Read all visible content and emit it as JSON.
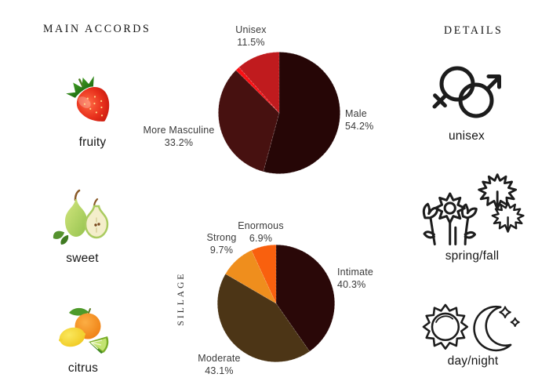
{
  "left_column": {
    "header": "MAIN ACCORDS",
    "items": [
      {
        "label": "fruity",
        "icon": "strawberry-icon"
      },
      {
        "label": "sweet",
        "icon": "pear-icon"
      },
      {
        "label": "citrus",
        "icon": "citrus-icon"
      }
    ]
  },
  "right_column": {
    "header": "DETAILS",
    "items": [
      {
        "label": "unisex",
        "icon": "gender-unisex-icon"
      },
      {
        "label": "spring/fall",
        "icon": "spring-fall-icon"
      },
      {
        "label": "day/night",
        "icon": "day-night-icon"
      }
    ]
  },
  "chart_data": [
    {
      "type": "pie",
      "name": "gender",
      "title": "",
      "order": "clockwise-from-top",
      "slices": [
        {
          "label": "Male",
          "value": 54.2,
          "pct": "54.2%",
          "color": "#260606"
        },
        {
          "label": "More Masculine",
          "value": 33.2,
          "pct": "33.2%",
          "color": "#471110"
        },
        {
          "label": "",
          "value": 1.1,
          "pct": "",
          "color": "#fa1014"
        },
        {
          "label": "Unisex",
          "value": 11.5,
          "pct": "11.5%",
          "color": "#c01b1e"
        }
      ]
    },
    {
      "type": "pie",
      "name": "sillage",
      "axis_label": "SILLAGE",
      "order": "clockwise-from-top",
      "slices": [
        {
          "label": "Intimate",
          "value": 40.3,
          "pct": "40.3%",
          "color": "#2a0808"
        },
        {
          "label": "Moderate",
          "value": 43.1,
          "pct": "43.1%",
          "color": "#4c3516"
        },
        {
          "label": "Strong",
          "value": 9.7,
          "pct": "9.7%",
          "color": "#ef8e1d"
        },
        {
          "label": "Enormous",
          "value": 6.9,
          "pct": "6.9%",
          "color": "#f9600e"
        }
      ]
    }
  ]
}
